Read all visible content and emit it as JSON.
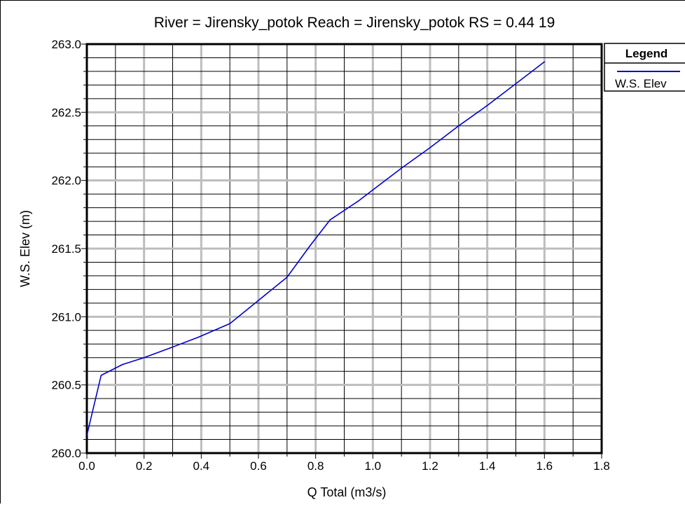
{
  "chart_data": {
    "type": "line",
    "title": "River = Jirensky_potok   Reach = Jirensky_potok      RS = 0.44  19",
    "xlabel": "Q Total  (m3/s)",
    "ylabel": "W.S. Elev  (m)",
    "xlim": [
      0.0,
      1.8
    ],
    "ylim": [
      260.0,
      263.0
    ],
    "x_ticks": [
      "0.0",
      "0.2",
      "0.4",
      "0.6",
      "0.8",
      "1.0",
      "1.2",
      "1.4",
      "1.6",
      "1.8"
    ],
    "y_ticks": [
      "260.0",
      "260.5",
      "261.0",
      "261.5",
      "262.0",
      "262.5",
      "263.0"
    ],
    "grid": true,
    "legend_position": "right",
    "legend_title": "Legend",
    "series": [
      {
        "name": "W.S. Elev",
        "color": "#0000cc",
        "x": [
          0.0,
          0.05,
          0.125,
          0.2,
          0.29,
          0.39,
          0.5,
          0.6,
          0.7,
          0.78,
          0.85,
          0.95,
          1.0,
          1.1,
          1.2,
          1.3,
          1.4,
          1.5,
          1.6
        ],
        "y": [
          260.13,
          260.57,
          260.65,
          260.7,
          260.77,
          260.85,
          260.95,
          261.12,
          261.29,
          261.52,
          261.71,
          261.85,
          261.93,
          262.09,
          262.24,
          262.4,
          262.55,
          262.71,
          262.87
        ]
      }
    ]
  }
}
